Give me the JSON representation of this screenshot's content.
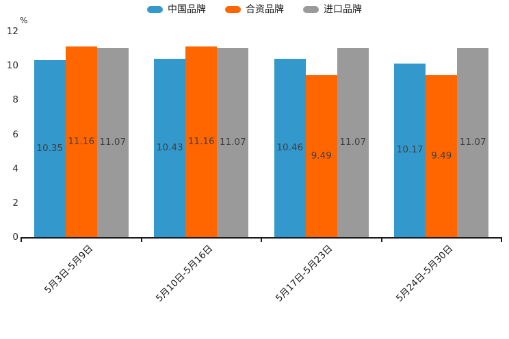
{
  "chart_data": {
    "type": "bar",
    "title": "",
    "unit_label": "%",
    "categories": [
      "5月3日-5月9日",
      "5月10日-5月16日",
      "5月17日-5月23日",
      "5月24日-5月30日"
    ],
    "series": [
      {
        "name": "中国品牌",
        "color": "#3398cb",
        "values": [
          10.35,
          10.43,
          10.46,
          10.17
        ]
      },
      {
        "name": "合资品牌",
        "color": "#ff6600",
        "values": [
          11.16,
          11.16,
          9.49,
          9.49
        ]
      },
      {
        "name": "进口品牌",
        "color": "#9a9a9a",
        "values": [
          11.07,
          11.07,
          11.07,
          11.07
        ]
      }
    ],
    "ylim": [
      0,
      12
    ],
    "yticks": [
      0,
      2,
      4,
      6,
      8,
      10,
      12
    ],
    "grid": false,
    "legend_position": "top",
    "value_labels_shown": true,
    "value_label_color": "#404040",
    "axis_color": "#1a1a1a"
  }
}
